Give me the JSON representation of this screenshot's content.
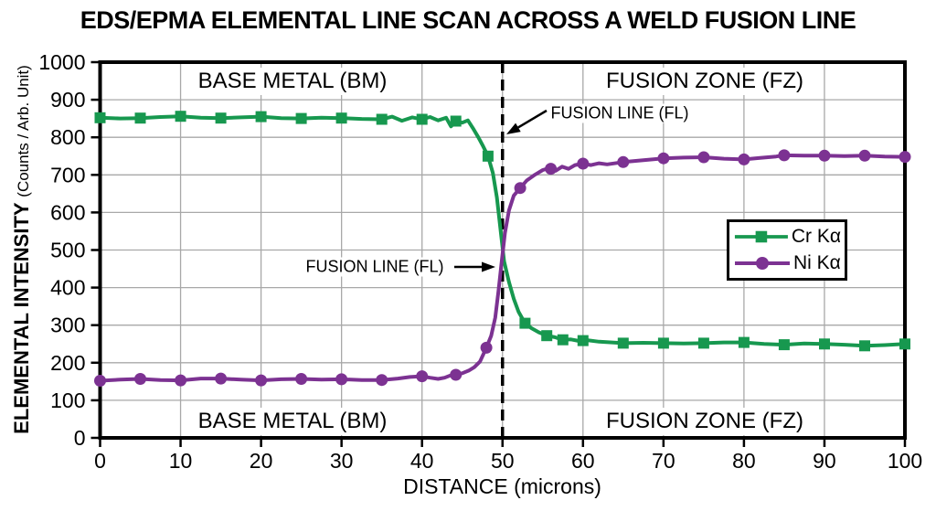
{
  "title": "EDS/EPMA ELEMENTAL LINE SCAN ACROSS A WELD FUSION LINE",
  "chart_data": {
    "type": "line",
    "title": "EDS/EPMA ELEMENTAL LINE SCAN ACROSS A WELD FUSION LINE",
    "xlabel": "DISTANCE (microns)",
    "ylabel": "ELEMENTAL INTENSITY",
    "ylabel_sub": "(Counts / Arb. Unit)",
    "xlim": [
      0,
      100
    ],
    "ylim": [
      0,
      1000
    ],
    "xticks": [
      0,
      10,
      20,
      30,
      40,
      50,
      60,
      70,
      80,
      90,
      100
    ],
    "yticks": [
      0,
      100,
      200,
      300,
      400,
      500,
      600,
      700,
      800,
      900,
      1000
    ],
    "grid": true,
    "legend_position": "middle-right",
    "fusion_line_x": 50,
    "series": [
      {
        "name": "Cr Kα",
        "color": "#17984f",
        "marker": "square",
        "points": [
          [
            0,
            852
          ],
          [
            2.5,
            850
          ],
          [
            5,
            851
          ],
          [
            7.5,
            854
          ],
          [
            10,
            856
          ],
          [
            12.5,
            852
          ],
          [
            15,
            851
          ],
          [
            17.5,
            853
          ],
          [
            20,
            855
          ],
          [
            22.5,
            851
          ],
          [
            25,
            850
          ],
          [
            27.5,
            852
          ],
          [
            30,
            851
          ],
          [
            32.5,
            849
          ],
          [
            35,
            848
          ],
          [
            36.3,
            855
          ],
          [
            37.5,
            844
          ],
          [
            38.8,
            853
          ],
          [
            40,
            848
          ],
          [
            41,
            854
          ],
          [
            42,
            845
          ],
          [
            43,
            852
          ],
          [
            43.6,
            829
          ],
          [
            44.2,
            843
          ],
          [
            45,
            839
          ],
          [
            45.7,
            845
          ],
          [
            46.3,
            825
          ],
          [
            47,
            800
          ],
          [
            47.6,
            776
          ],
          [
            48.2,
            750
          ],
          [
            48.8,
            705
          ],
          [
            49.3,
            640
          ],
          [
            49.8,
            545
          ],
          [
            50.2,
            470
          ],
          [
            50.8,
            415
          ],
          [
            51.4,
            370
          ],
          [
            52,
            335
          ],
          [
            52.8,
            305
          ],
          [
            53.6,
            292
          ],
          [
            54.5,
            281
          ],
          [
            55.5,
            272
          ],
          [
            56.5,
            268
          ],
          [
            57.5,
            261
          ],
          [
            58.5,
            262
          ],
          [
            59.5,
            258
          ],
          [
            60.5,
            260
          ],
          [
            62,
            256
          ],
          [
            65,
            252
          ],
          [
            67.5,
            253
          ],
          [
            70,
            252
          ],
          [
            72.5,
            251
          ],
          [
            75,
            252
          ],
          [
            77.5,
            254
          ],
          [
            80,
            254
          ],
          [
            82.5,
            250
          ],
          [
            85,
            248
          ],
          [
            87.5,
            251
          ],
          [
            90,
            250
          ],
          [
            92.5,
            248
          ],
          [
            95,
            245
          ],
          [
            97.5,
            247
          ],
          [
            100,
            250
          ]
        ],
        "marker_x": [
          0,
          5,
          10,
          15,
          20,
          25,
          30,
          35,
          40,
          44.2,
          48.2,
          52.8,
          55.5,
          57.5,
          60,
          65,
          70,
          75,
          80,
          85,
          90,
          95,
          100
        ]
      },
      {
        "name": "Ni Kα",
        "color": "#7c3292",
        "marker": "circle",
        "points": [
          [
            0,
            152
          ],
          [
            2.5,
            155
          ],
          [
            5,
            157
          ],
          [
            7.5,
            154
          ],
          [
            10,
            153
          ],
          [
            12.5,
            158
          ],
          [
            15,
            158
          ],
          [
            17.5,
            155
          ],
          [
            20,
            153
          ],
          [
            22.5,
            156
          ],
          [
            25,
            157
          ],
          [
            27.5,
            155
          ],
          [
            30,
            156
          ],
          [
            32.5,
            154
          ],
          [
            35,
            154
          ],
          [
            37,
            158
          ],
          [
            38.5,
            162
          ],
          [
            40,
            164
          ],
          [
            41,
            160
          ],
          [
            42,
            157
          ],
          [
            42.8,
            160
          ],
          [
            43.5,
            166
          ],
          [
            44.2,
            168
          ],
          [
            45,
            172
          ],
          [
            45.8,
            179
          ],
          [
            46.5,
            188
          ],
          [
            47.2,
            203
          ],
          [
            48,
            240
          ],
          [
            48.6,
            272
          ],
          [
            49.1,
            320
          ],
          [
            49.5,
            390
          ],
          [
            49.9,
            470
          ],
          [
            50.3,
            545
          ],
          [
            50.8,
            605
          ],
          [
            51.4,
            645
          ],
          [
            52.2,
            665
          ],
          [
            53,
            685
          ],
          [
            54,
            700
          ],
          [
            55,
            713
          ],
          [
            55.8,
            718
          ],
          [
            56.6,
            711
          ],
          [
            57.4,
            722
          ],
          [
            58.2,
            716
          ],
          [
            59,
            726
          ],
          [
            60,
            730
          ],
          [
            61,
            726
          ],
          [
            62,
            731
          ],
          [
            63,
            728
          ],
          [
            65,
            734
          ],
          [
            67.5,
            739
          ],
          [
            70,
            744
          ],
          [
            72.5,
            746
          ],
          [
            75,
            747
          ],
          [
            77.5,
            743
          ],
          [
            80,
            741
          ],
          [
            82,
            745
          ],
          [
            84,
            749
          ],
          [
            85,
            752
          ],
          [
            87.5,
            751
          ],
          [
            90,
            751
          ],
          [
            92.5,
            750
          ],
          [
            95,
            751
          ],
          [
            97.5,
            749
          ],
          [
            100,
            748
          ]
        ],
        "marker_x": [
          0,
          5,
          10,
          15,
          20,
          25,
          30,
          35,
          40,
          44.2,
          48,
          52.2,
          56,
          60,
          65,
          70,
          75,
          80,
          85,
          90,
          95,
          100
        ]
      }
    ]
  },
  "regions": {
    "base_metal": "BASE METAL (BM)",
    "fusion_zone": "FUSION ZONE (FZ)"
  },
  "annotations": {
    "fusion_line_label": "FUSION LINE (FL)"
  },
  "legend": {
    "items": [
      {
        "label": "Cr Kα"
      },
      {
        "label": "Ni Kα"
      }
    ]
  },
  "colors": {
    "cr_green": "#17984f",
    "ni_purple": "#7c3292",
    "gridline": "#a8a8a8",
    "axis": "#000000"
  }
}
